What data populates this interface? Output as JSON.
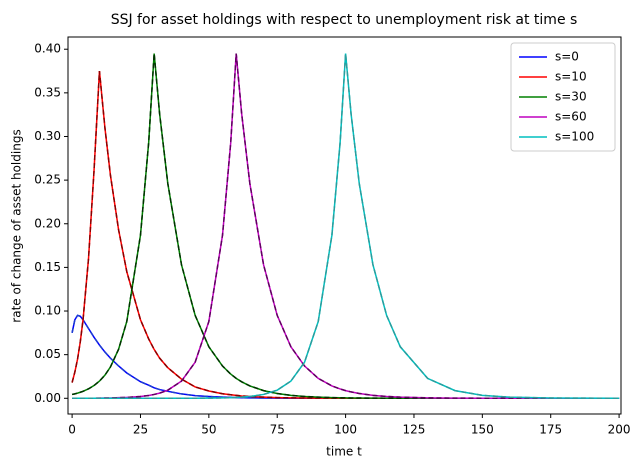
{
  "chart_data": {
    "type": "line",
    "title": "SSJ for asset holdings with respect to unemployment risk at time s",
    "xlabel": "time t",
    "ylabel": "rate of change of asset holdings",
    "x": [
      0,
      1,
      2,
      3,
      4,
      6,
      8,
      10,
      12,
      14,
      17,
      20,
      25,
      28,
      30,
      32,
      35,
      40,
      45,
      50,
      55,
      58,
      60,
      62,
      65,
      70,
      75,
      80,
      85,
      90,
      95,
      98,
      100,
      102,
      105,
      110,
      115,
      120,
      130,
      140,
      150,
      160,
      175,
      200
    ],
    "series": [
      {
        "name": "s=0",
        "color": "#0000ff",
        "dash_color": "#1f3fd0",
        "values": [
          0.075,
          0.09,
          0.095,
          0.094,
          0.09,
          0.08,
          0.07,
          0.061,
          0.053,
          0.046,
          0.037,
          0.029,
          0.019,
          0.015,
          0.012,
          0.01,
          0.008,
          0.005,
          0.003,
          0.002,
          0.0013,
          0.001,
          0.0008,
          0.0006,
          0.0005,
          0.0003,
          0.0002,
          0.0001,
          0,
          0,
          0,
          0,
          0,
          0,
          0,
          0,
          0,
          0,
          0,
          0,
          0,
          0,
          0,
          0
        ]
      },
      {
        "name": "s=10",
        "color": "#ff0000",
        "dash_color": "#8b0000",
        "values": [
          0.018,
          0.03,
          0.045,
          0.065,
          0.09,
          0.16,
          0.26,
          0.375,
          0.31,
          0.256,
          0.193,
          0.145,
          0.09,
          0.068,
          0.056,
          0.046,
          0.035,
          0.022,
          0.013,
          0.0084,
          0.0052,
          0.004,
          0.0033,
          0.0027,
          0.002,
          0.0013,
          0.0008,
          0.0005,
          0.0003,
          0.0002,
          0.0001,
          0,
          0,
          0,
          0,
          0,
          0,
          0,
          0,
          0,
          0,
          0,
          0,
          0
        ]
      },
      {
        "name": "s=30",
        "color": "#008000",
        "dash_color": "#003300",
        "values": [
          0.0044,
          0.0051,
          0.0059,
          0.0069,
          0.008,
          0.0108,
          0.0146,
          0.0197,
          0.0265,
          0.0358,
          0.0562,
          0.088,
          0.187,
          0.293,
          0.395,
          0.326,
          0.246,
          0.153,
          0.095,
          0.059,
          0.037,
          0.0277,
          0.0228,
          0.0189,
          0.0142,
          0.0088,
          0.0055,
          0.0034,
          0.0021,
          0.0013,
          0.0008,
          0.0006,
          0.0005,
          0.0004,
          0.0003,
          0.0002,
          0.0001,
          0.0001,
          0,
          0,
          0,
          0,
          0,
          0
        ]
      },
      {
        "name": "s=60",
        "color": "#bf00bf",
        "dash_color": "#600060",
        "values": [
          0,
          0,
          0,
          0,
          0,
          0,
          0.0001,
          0.0002,
          0.0003,
          0.0004,
          0.0007,
          0.001,
          0.0021,
          0.0032,
          0.0044,
          0.0059,
          0.0093,
          0.0197,
          0.0414,
          0.088,
          0.187,
          0.293,
          0.395,
          0.326,
          0.246,
          0.153,
          0.095,
          0.059,
          0.037,
          0.0228,
          0.0142,
          0.0107,
          0.0088,
          0.0073,
          0.0055,
          0.0034,
          0.0021,
          0.0013,
          0.0005,
          0.0002,
          0.0001,
          0,
          0,
          0
        ]
      },
      {
        "name": "s=100",
        "color": "#00bfbf",
        "dash_color": "#2a9d9d",
        "values": [
          0,
          0,
          0,
          0,
          0,
          0,
          0,
          0,
          0,
          0,
          0,
          0,
          0,
          0,
          0,
          0,
          0,
          0.0001,
          0.0001,
          0.0002,
          0.0005,
          0.0007,
          0.001,
          0.0013,
          0.0021,
          0.0044,
          0.0093,
          0.0197,
          0.0414,
          0.088,
          0.187,
          0.293,
          0.395,
          0.326,
          0.246,
          0.153,
          0.095,
          0.059,
          0.0228,
          0.0088,
          0.0034,
          0.0013,
          0.0003,
          0
        ]
      }
    ],
    "xlim": [
      -1.5,
      200.7
    ],
    "ylim": [
      -0.018,
      0.414
    ],
    "xticks": [
      0,
      25,
      50,
      75,
      100,
      125,
      150,
      175,
      200
    ],
    "yticks": [
      {
        "value": 0,
        "label": "0.00"
      },
      {
        "value": 0.05,
        "label": "0.05"
      },
      {
        "value": 0.1,
        "label": "0.10"
      },
      {
        "value": 0.15,
        "label": "0.15"
      },
      {
        "value": 0.2,
        "label": "0.20"
      },
      {
        "value": 0.25,
        "label": "0.25"
      },
      {
        "value": 0.3,
        "label": "0.30"
      },
      {
        "value": 0.35,
        "label": "0.35"
      },
      {
        "value": 0.4,
        "label": "0.40"
      }
    ],
    "legend": "upper right"
  }
}
